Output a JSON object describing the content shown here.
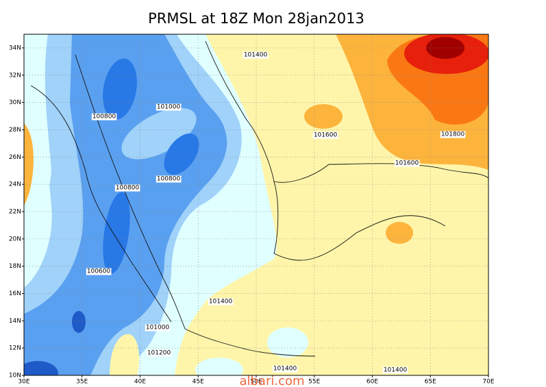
{
  "title": "PRMSL at 18Z Mon 28jan2013",
  "lat_labels": [
    "10N",
    "12N",
    "14N",
    "16N",
    "18N",
    "20N",
    "22N",
    "24N",
    "26N",
    "28N",
    "30N",
    "32N",
    "34N"
  ],
  "lon_labels": [
    "30E",
    "35E",
    "40E",
    "45E",
    "50E",
    "55E",
    "60E",
    "65E",
    "70E"
  ],
  "contour_labels": [
    "101400",
    "100800",
    "101000",
    "101600",
    "101800",
    "101600",
    "100800",
    "100800",
    "100600",
    "101400",
    "101000",
    "101200",
    "101400",
    "101400"
  ],
  "watermark": "albari.com"
}
